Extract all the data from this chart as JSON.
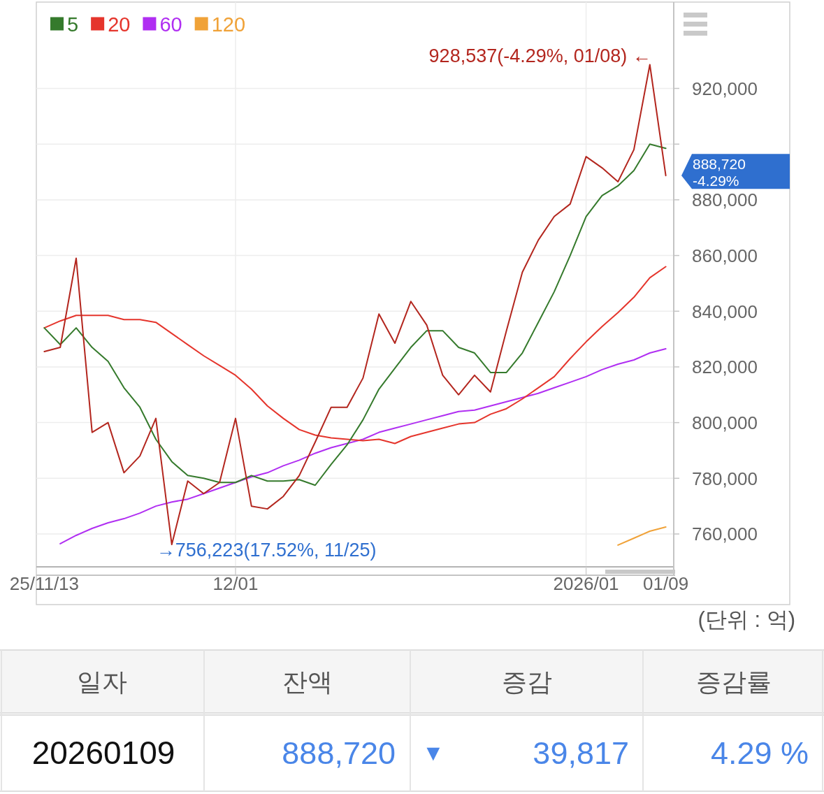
{
  "chart_data": {
    "type": "line",
    "categories": [
      "25/11/13",
      null,
      null,
      null,
      null,
      null,
      null,
      null,
      null,
      null,
      null,
      null,
      "12/01",
      null,
      null,
      null,
      null,
      null,
      null,
      null,
      null,
      null,
      null,
      null,
      null,
      null,
      null,
      null,
      null,
      null,
      null,
      null,
      null,
      null,
      "2026/01",
      null,
      null,
      null,
      null,
      "01/09"
    ],
    "series": [
      {
        "color": "#b3261e",
        "values": [
          825500,
          827000,
          859000,
          796500,
          800000,
          782000,
          788000,
          801500,
          756223,
          779000,
          774500,
          778500,
          801500,
          770000,
          769000,
          773500,
          781000,
          793000,
          805500,
          805500,
          816000,
          839000,
          828500,
          843500,
          835000,
          817000,
          810000,
          817000,
          811000,
          833000,
          854000,
          865500,
          874000,
          878500,
          895500,
          891500,
          886500,
          898000,
          928537,
          888720
        ]
      },
      {
        "name": "5",
        "color": "#357a2c",
        "values": [
          834000,
          828000,
          834000,
          827000,
          822000,
          812500,
          805500,
          794000,
          786000,
          781000,
          780000,
          778500,
          778500,
          781000,
          779000,
          779000,
          779500,
          777500,
          785000,
          792000,
          801000,
          812000,
          819500,
          827000,
          833000,
          833000,
          827000,
          825000,
          818000,
          818000,
          825000,
          836000,
          847000,
          860000,
          874000,
          881500,
          885000,
          890500,
          900000,
          898500
        ]
      },
      {
        "name": "20",
        "color": "#e5352c",
        "values": [
          834000,
          836500,
          838500,
          838500,
          838500,
          837000,
          837000,
          836000,
          832000,
          828000,
          824000,
          820500,
          817000,
          812000,
          806000,
          801500,
          797500,
          795500,
          794500,
          794000,
          793500,
          794000,
          792500,
          795000,
          796500,
          798000,
          799500,
          800000,
          803000,
          805000,
          808500,
          812500,
          816500,
          823000,
          829000,
          834500,
          839500,
          845000,
          852000,
          856000
        ]
      },
      {
        "name": "60",
        "color": "#b02ef2",
        "values": [
          null,
          756500,
          759500,
          762000,
          764000,
          765500,
          767500,
          770000,
          771500,
          772500,
          774500,
          776500,
          778500,
          780500,
          782000,
          784500,
          786500,
          789000,
          791000,
          792500,
          794000,
          796500,
          798000,
          799500,
          801000,
          802500,
          804000,
          804500,
          806000,
          807500,
          809000,
          810500,
          812500,
          814500,
          816500,
          819000,
          821000,
          822500,
          825000,
          826500
        ]
      },
      {
        "name": "120",
        "color": "#f0a238",
        "values": [
          null,
          null,
          null,
          null,
          null,
          null,
          null,
          null,
          null,
          null,
          null,
          null,
          null,
          null,
          null,
          null,
          null,
          null,
          null,
          null,
          null,
          null,
          null,
          null,
          null,
          null,
          null,
          null,
          null,
          null,
          null,
          null,
          null,
          null,
          null,
          null,
          756000,
          758500,
          761000,
          762500
        ]
      }
    ],
    "ylim": [
      748200,
      951000
    ],
    "yticks": [
      {
        "value": 760000,
        "label": "760,000"
      },
      {
        "value": 780000,
        "label": "780,000"
      },
      {
        "value": 800000,
        "label": "800,000"
      },
      {
        "value": 820000,
        "label": "820,000"
      },
      {
        "value": 840000,
        "label": "840,000"
      },
      {
        "value": 860000,
        "label": "860,000"
      },
      {
        "value": 880000,
        "label": "880,000"
      },
      {
        "value": 900000,
        "label": null
      },
      {
        "value": 920000,
        "label": "920,000"
      }
    ],
    "grid": true,
    "legend": "top left",
    "annotations": [
      "928,537(-4.29%, 01/08) ←",
      "→756,223(17.52%, 11/25)",
      {
        "text": "888,720\n-4.29%",
        "x": "01/09",
        "y": 888720
      },
      "(단위 : 억)",
      "일자",
      "잔액",
      "증감",
      "증감률",
      "20260109",
      "888,720",
      "▼",
      "39,817",
      "4.29 %"
    ]
  }
}
